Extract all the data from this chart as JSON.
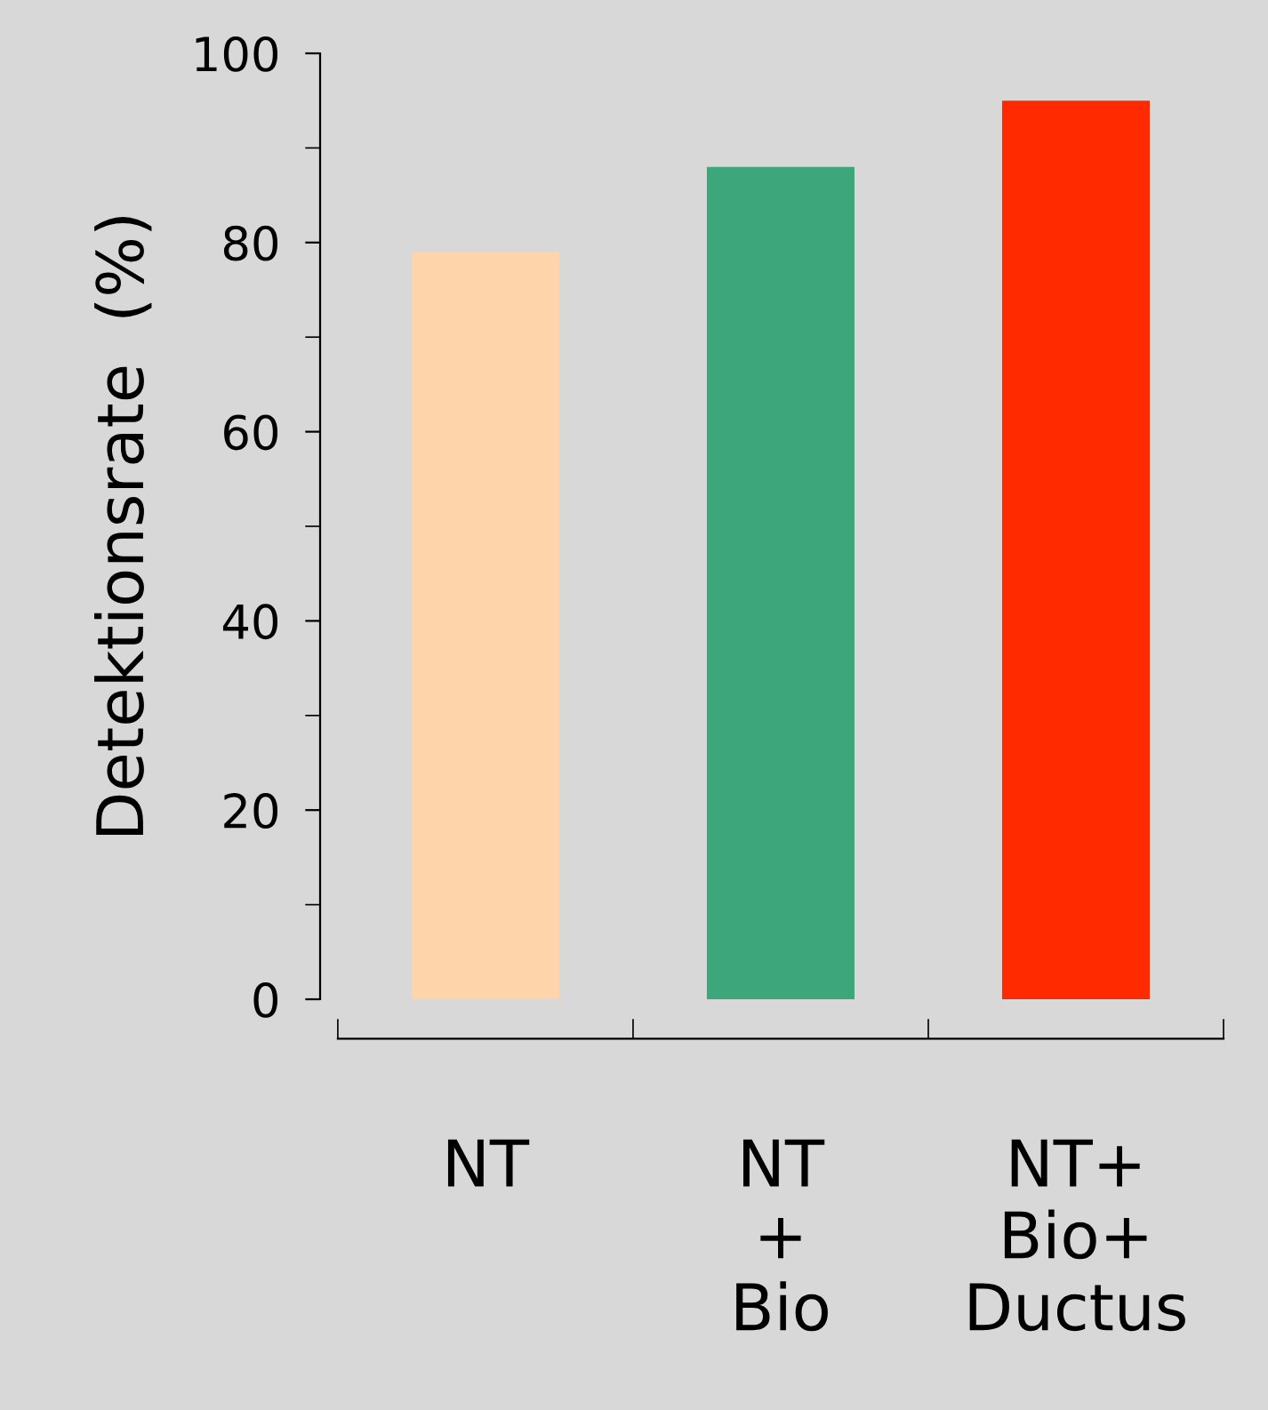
{
  "chart_data": {
    "type": "bar",
    "ylabel": "Detektionsrate  (%)",
    "categories": [
      "NT",
      "NT\n+\nBio",
      "NT+\nBio+\nDuctus"
    ],
    "values": [
      79,
      88,
      95
    ],
    "colors": [
      "#fed4aa",
      "#3da67a",
      "#ff2a00"
    ],
    "ylim": [
      0,
      100
    ],
    "yticks": [
      0,
      {
        "value": 10,
        "label": null
      },
      20,
      {
        "value": 30,
        "label": null
      },
      40,
      {
        "value": 50,
        "label": null
      },
      60,
      {
        "value": 70,
        "label": null
      },
      80,
      {
        "value": 90,
        "label": null
      },
      100
    ],
    "grid": false,
    "legend": false
  }
}
